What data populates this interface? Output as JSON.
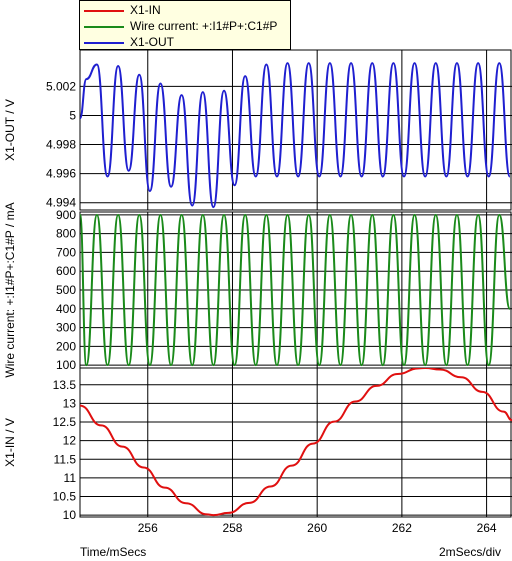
{
  "chart_data": [
    {
      "type": "line",
      "ylabel": "X1-OUT / V",
      "ylim": [
        4.9935,
        5.0045
      ],
      "yticks": [
        4.994,
        4.996,
        4.998,
        5,
        5.002
      ],
      "ytick_labels": [
        "4.994",
        "4.996",
        "4.998",
        "5",
        "5.002"
      ],
      "xlim": [
        254.4,
        264.6
      ],
      "grid": true,
      "series": [
        {
          "name": "X1-OUT",
          "color": "#1f1fd0",
          "x": [
            254.4,
            254.55,
            254.8,
            255.05,
            255.3,
            255.55,
            255.8,
            256.05,
            256.3,
            256.55,
            256.8,
            257.05,
            257.3,
            257.55,
            257.8,
            258.05,
            258.3,
            258.55,
            258.8,
            259.05,
            259.3,
            259.55,
            259.8,
            260.05,
            260.3,
            260.55,
            260.8,
            261.05,
            261.3,
            261.55,
            261.8,
            262.05,
            262.3,
            262.55,
            262.8,
            263.05,
            263.3,
            263.55,
            263.8,
            264.05,
            264.3,
            264.55
          ],
          "y": [
            4.9998,
            5.0025,
            5.0035,
            4.9958,
            5.0034,
            4.9962,
            5.0028,
            4.9948,
            5.0022,
            4.9951,
            5.0014,
            4.9938,
            5.0016,
            4.9937,
            5.0017,
            4.9952,
            5.0027,
            4.9958,
            5.0035,
            4.9958,
            5.0036,
            4.9958,
            5.0036,
            4.9958,
            5.0036,
            4.9958,
            5.0036,
            4.9958,
            5.0036,
            4.9958,
            5.0036,
            4.9958,
            5.0036,
            4.9958,
            5.0036,
            4.9958,
            5.0036,
            4.9958,
            5.0036,
            4.9958,
            5.0036,
            4.9958
          ]
        }
      ]
    },
    {
      "type": "line",
      "ylabel": "Wire current: +:I1#P+:C1#P / mA",
      "ylim": [
        85,
        915
      ],
      "yticks": [
        100,
        200,
        300,
        400,
        500,
        600,
        700,
        800,
        900
      ],
      "ytick_labels": [
        "100",
        "200",
        "300",
        "400",
        "500",
        "600",
        "700",
        "800",
        "900"
      ],
      "xlim": [
        254.4,
        264.6
      ],
      "grid": true,
      "series": [
        {
          "name": "Wire current: +:I1#P+:C1#P",
          "color": "#1a8a1a",
          "x": [
            254.4,
            254.55,
            254.8,
            255.05,
            255.3,
            255.55,
            255.8,
            256.05,
            256.3,
            256.55,
            256.8,
            257.05,
            257.3,
            257.55,
            257.8,
            258.05,
            258.3,
            258.55,
            258.8,
            259.05,
            259.3,
            259.55,
            259.8,
            260.05,
            260.3,
            260.55,
            260.8,
            261.05,
            261.3,
            261.55,
            261.8,
            262.05,
            262.3,
            262.55,
            262.8,
            263.05,
            263.3,
            263.55,
            263.8,
            264.05,
            264.3,
            264.55
          ],
          "y": [
            900,
            100,
            900,
            100,
            900,
            100,
            900,
            100,
            900,
            100,
            900,
            100,
            900,
            100,
            900,
            100,
            900,
            100,
            900,
            100,
            900,
            100,
            900,
            100,
            900,
            100,
            900,
            100,
            900,
            100,
            900,
            100,
            900,
            100,
            900,
            100,
            900,
            100,
            900,
            100,
            900,
            400
          ]
        }
      ]
    },
    {
      "type": "line",
      "ylabel": "X1-IN / V",
      "ylim": [
        9.95,
        13.95
      ],
      "yticks": [
        10,
        10.5,
        11,
        11.5,
        12,
        12.5,
        13,
        13.5
      ],
      "ytick_labels": [
        "10",
        "10.5",
        "11",
        "11.5",
        "12",
        "12.5",
        "13",
        "13.5"
      ],
      "xlim": [
        254.4,
        264.6
      ],
      "xticks": [
        256,
        258,
        260,
        262,
        264
      ],
      "xtick_labels": [
        "256",
        "258",
        "260",
        "262",
        "264"
      ],
      "grid": true,
      "series": [
        {
          "name": "X1-IN",
          "color": "#e01010",
          "x": [
            254.4,
            254.9,
            255.4,
            255.9,
            256.4,
            256.9,
            257.4,
            257.55,
            257.9,
            258.4,
            258.9,
            259.4,
            259.9,
            260.4,
            260.9,
            261.4,
            261.9,
            262.4,
            262.55,
            262.9,
            263.4,
            263.9,
            264.4,
            264.6
          ],
          "y": [
            12.94,
            12.41,
            11.84,
            11.28,
            10.74,
            10.32,
            10.02,
            10.0,
            10.06,
            10.33,
            10.77,
            11.33,
            11.92,
            12.51,
            13.05,
            13.47,
            13.79,
            13.94,
            13.95,
            13.91,
            13.7,
            13.31,
            12.78,
            12.55
          ]
        }
      ]
    }
  ],
  "legend": {
    "items": [
      {
        "label": "X1-IN",
        "color": "#e01010"
      },
      {
        "label": "Wire current: +:I1#P+:C1#P",
        "color": "#1a8a1a"
      },
      {
        "label": "X1-OUT",
        "color": "#1f1fd0"
      }
    ]
  },
  "footer": {
    "left": "Time/mSecs",
    "right": "2mSecs/div"
  }
}
